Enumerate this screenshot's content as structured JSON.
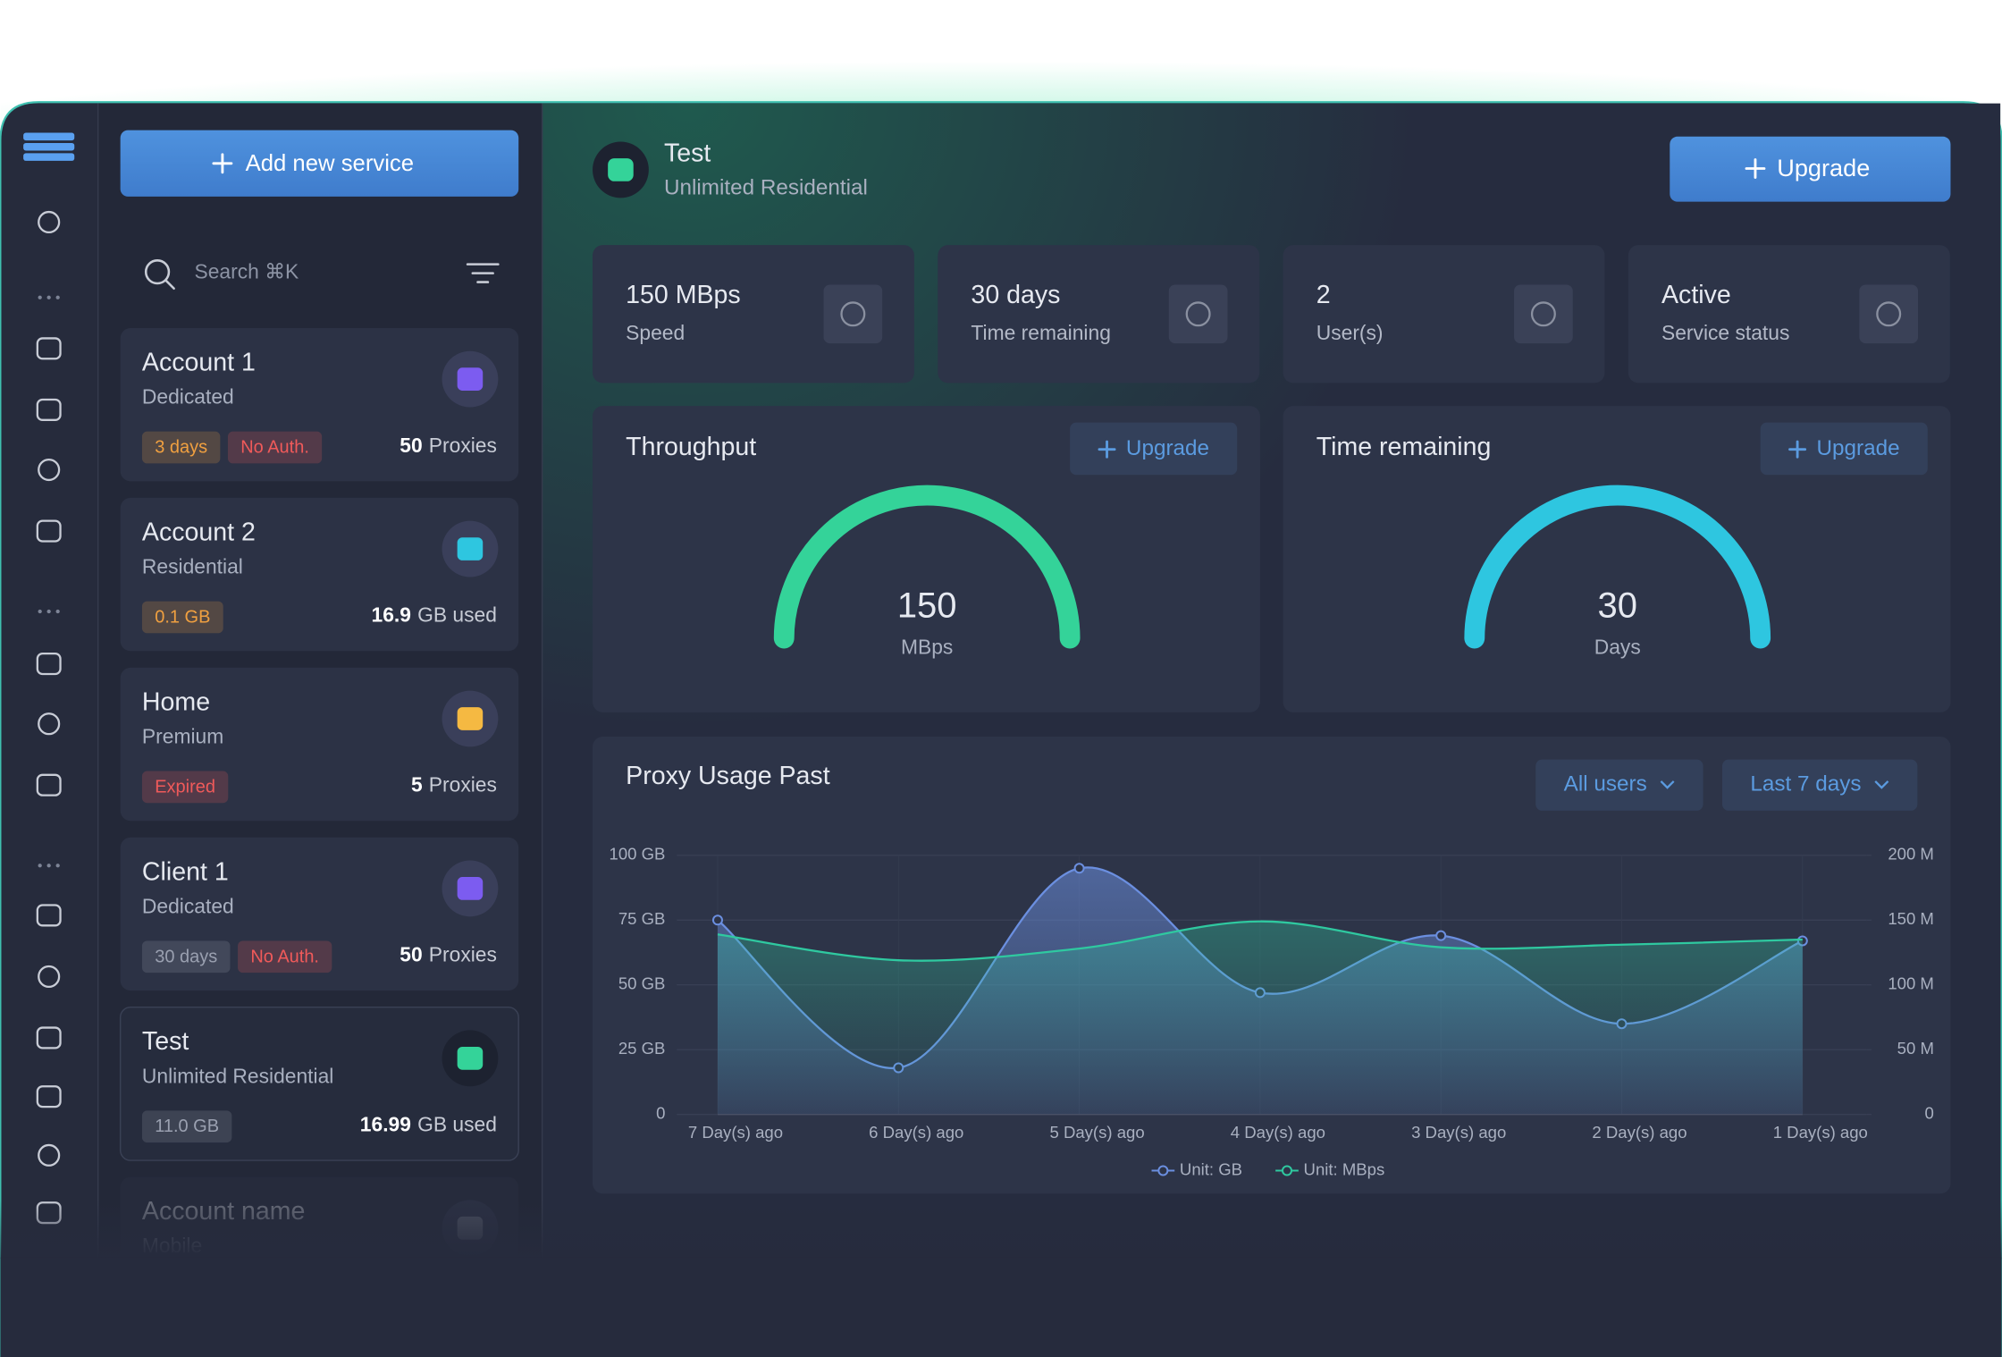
{
  "sidebar": {
    "add_button": "Add new service",
    "search_placeholder": "Search ⌘K",
    "services": [
      {
        "name": "Account 1",
        "type": "Dedicated",
        "icon_color": "#7c5cf0",
        "tags": [
          {
            "text": "3 days",
            "color": "#f0a040"
          },
          {
            "text": "No Auth.",
            "color": "#f05a5a"
          }
        ],
        "amount": "50",
        "unit": "Proxies"
      },
      {
        "name": "Account 2",
        "type": "Residential",
        "icon_color": "#2ec6e0",
        "tags": [
          {
            "text": "0.1 GB",
            "color": "#f0a040"
          }
        ],
        "amount": "16.9",
        "unit": "GB used"
      },
      {
        "name": "Home",
        "type": "Premium",
        "icon_color": "#f5b942",
        "tags": [
          {
            "text": "Expired",
            "color": "#f05a5a"
          }
        ],
        "amount": "5",
        "unit": "Proxies"
      },
      {
        "name": "Client 1",
        "type": "Dedicated",
        "icon_color": "#7c5cf0",
        "tags": [
          {
            "text": "30 days",
            "color": "#9aa0b0"
          },
          {
            "text": "No Auth.",
            "color": "#f05a5a"
          }
        ],
        "amount": "50",
        "unit": "Proxies"
      },
      {
        "name": "Test",
        "type": "Unlimited Residential",
        "icon_color": "#34d399",
        "tags": [
          {
            "text": "11.0 GB",
            "color": "#9aa0b0"
          }
        ],
        "amount": "16.99",
        "unit": "GB used"
      },
      {
        "name": "Account name",
        "type": "Mobile",
        "icon_color": "#8a90a0",
        "tags": []
      }
    ]
  },
  "header": {
    "title": "Test",
    "subtitle": "Unlimited Residential",
    "upgrade_button": "Upgrade"
  },
  "stats": [
    {
      "value": "150 MBps",
      "label": "Speed"
    },
    {
      "value": "30 days",
      "label": "Time remaining"
    },
    {
      "value": "2",
      "label": "User(s)"
    },
    {
      "value": "Active",
      "label": "Service status"
    }
  ],
  "gauges": [
    {
      "title": "Throughput",
      "button": "Upgrade",
      "value": "150",
      "unit": "MBps",
      "color": "#34d399"
    },
    {
      "title": "Time remaining",
      "button": "Upgrade",
      "value": "30",
      "unit": "Days",
      "color": "#2ec6e0"
    }
  ],
  "chart_data": {
    "type": "area",
    "title": "Proxy Usage Past",
    "filters": [
      "All users",
      "Last 7 days"
    ],
    "categories": [
      "7 Day(s) ago",
      "6 Day(s) ago",
      "5 Day(s) ago",
      "4 Day(s) ago",
      "3 Day(s) ago",
      "2 Day(s) ago",
      "1 Day(s) ago"
    ],
    "series": [
      {
        "name": "Unit: GB",
        "color": "#6b8fe0",
        "values": [
          75,
          18,
          95,
          47,
          69,
          35,
          67
        ]
      },
      {
        "name": "Unit: MBps",
        "color": "#2fc9a0",
        "axis": "y2",
        "values": [
          139,
          119,
          128,
          149,
          129,
          131,
          135
        ]
      }
    ],
    "ylim": [
      0,
      100
    ],
    "yticks": [
      0,
      {
        "value": 25,
        "label": "25 GB"
      },
      {
        "value": 50,
        "label": "50 GB"
      },
      {
        "value": 75,
        "label": "75 GB"
      },
      {
        "value": 100,
        "label": "100 GB"
      }
    ],
    "y2lim": [
      0,
      200
    ],
    "y2ticks": [
      0,
      {
        "value": 50,
        "label": "50 M"
      },
      {
        "value": 100,
        "label": "100 M"
      },
      {
        "value": 150,
        "label": "150 M"
      },
      {
        "value": 200,
        "label": "200 M"
      }
    ],
    "grid": true
  }
}
